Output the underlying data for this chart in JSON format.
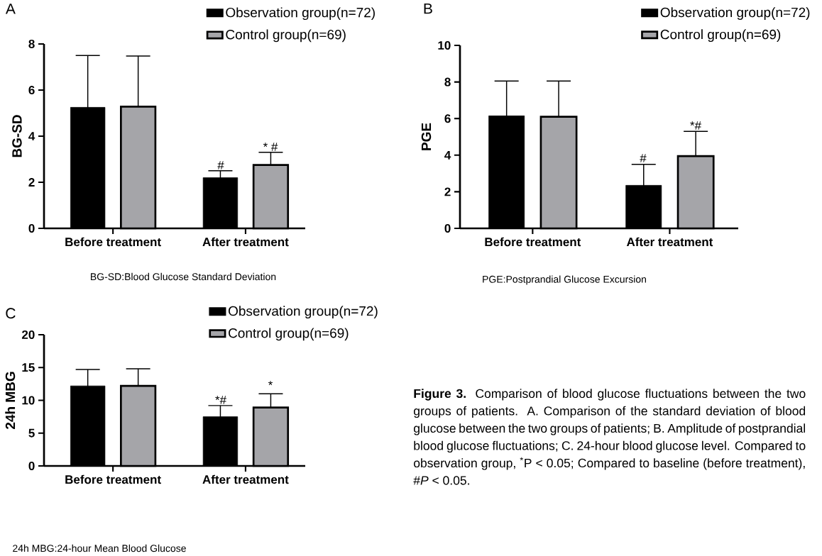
{
  "chart_data": [
    {
      "type": "bar",
      "title": "A",
      "ylabel": "BG-SD",
      "categories": [
        "Before treatment",
        "After treatment"
      ],
      "series": [
        {
          "name": "Observation group(n=72)",
          "color": "#000000",
          "values": [
            5.25,
            2.2
          ],
          "errors": [
            2.25,
            0.3
          ]
        },
        {
          "name": "Control group(n=69)",
          "color": "#a5a5a9",
          "values": [
            5.28,
            2.75
          ],
          "errors": [
            2.2,
            0.55
          ]
        }
      ],
      "ylim": [
        0,
        8
      ],
      "yticks": [
        0,
        2,
        4,
        6,
        8
      ],
      "legend": "top right",
      "annotations": [
        "#",
        "* #",
        "BG-SD:Blood Glucose Standard Deviation"
      ]
    },
    {
      "type": "bar",
      "title": "B",
      "ylabel": "PGE",
      "categories": [
        "Before treatment",
        "After treatment"
      ],
      "series": [
        {
          "name": "Observation group(n=72)",
          "color": "#000000",
          "values": [
            6.15,
            2.35
          ],
          "errors": [
            1.9,
            1.15
          ]
        },
        {
          "name": "Control group(n=69)",
          "color": "#a5a5a9",
          "values": [
            6.1,
            3.95
          ],
          "errors": [
            1.95,
            1.35
          ]
        }
      ],
      "ylim": [
        0,
        10
      ],
      "yticks": [
        0,
        2,
        4,
        6,
        8,
        10
      ],
      "legend": "top right",
      "annotations": [
        "#",
        "*#",
        "PGE:Postprandial Glucose Excursion"
      ]
    },
    {
      "type": "bar",
      "title": "C",
      "ylabel": "24h MBG",
      "categories": [
        "Before treatment",
        "After treatment"
      ],
      "series": [
        {
          "name": "Observation group(n=72)",
          "color": "#000000",
          "values": [
            12.2,
            7.5
          ],
          "errors": [
            2.5,
            1.7
          ]
        },
        {
          "name": "Control group(n=69)",
          "color": "#a5a5a9",
          "values": [
            12.2,
            8.9
          ],
          "errors": [
            2.6,
            2.1
          ]
        }
      ],
      "ylim": [
        0,
        20
      ],
      "yticks": [
        0,
        5,
        10,
        15,
        20
      ],
      "legend": "top right",
      "annotations": [
        "*#",
        "*",
        "24h MBG:24-hour Mean Blood Glucose"
      ]
    },
    {
      "type": "other",
      "annotations": [
        "**Figure 3.** Comparison of blood glucose fluctuations between the two groups of patients. A. Comparison of the standard deviation of blood glucose between the two groups of patients; B. Amplitude of postprandial blood glucose fluctuations; C. 24-hour blood glucose level. Compared to observation group, $^{*}$P < 0.05; Compared to baseline (before treatment), #*P* < 0.05."
      ]
    }
  ]
}
